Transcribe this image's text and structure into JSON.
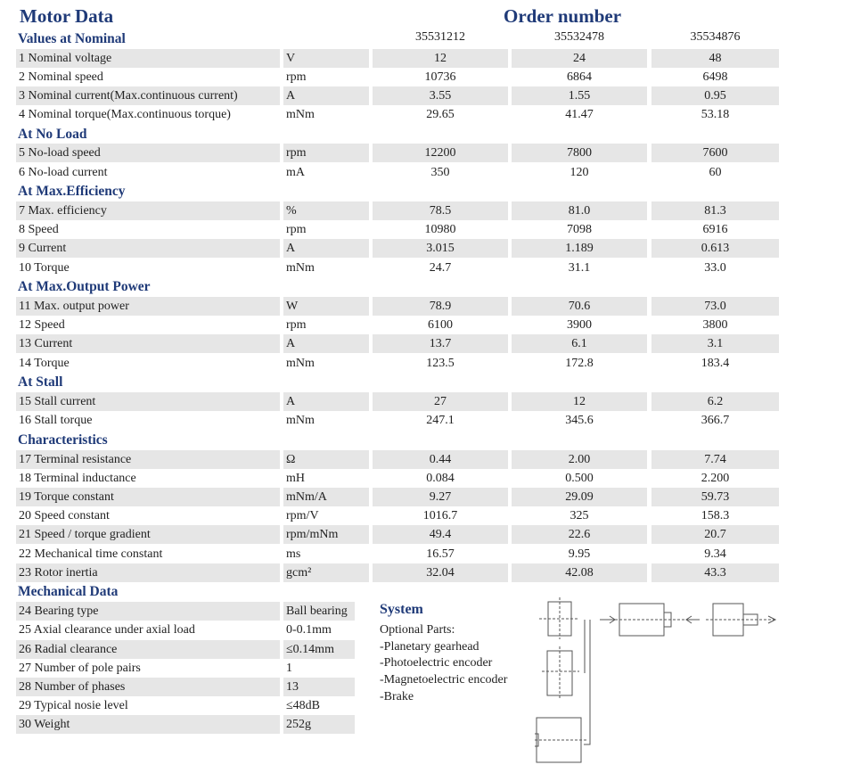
{
  "title": "Motor Data",
  "order_title": "Order number",
  "section_nominal": "Values at Nominal",
  "order_numbers": [
    "35531212",
    "35532478",
    "35534876"
  ],
  "sections": {
    "no_load": "At No Load",
    "max_eff": "At Max.Efficiency",
    "max_power": "At Max.Output Power",
    "stall": "At Stall",
    "characteristics": "Characteristics",
    "mechanical": "Mechanical Data"
  },
  "rows": [
    {
      "label": "1 Nominal voltage",
      "unit": "V",
      "v": [
        "12",
        "24",
        "48"
      ]
    },
    {
      "label": "2 Nominal speed",
      "unit": "rpm",
      "v": [
        "10736",
        "6864",
        "6498"
      ]
    },
    {
      "label": "3 Nominal current(Max.continuous current)",
      "unit": "A",
      "v": [
        "3.55",
        "1.55",
        "0.95"
      ]
    },
    {
      "label": "4 Nominal torque(Max.continuous torque)",
      "unit": "mNm",
      "v": [
        "29.65",
        "41.47",
        "53.18"
      ]
    },
    {
      "label": "5 No-load speed",
      "unit": "rpm",
      "v": [
        "12200",
        "7800",
        "7600"
      ]
    },
    {
      "label": "6 No-load current",
      "unit": "mA",
      "v": [
        "350",
        "120",
        "60"
      ]
    },
    {
      "label": "7 Max. efficiency",
      "unit": "%",
      "v": [
        "78.5",
        "81.0",
        "81.3"
      ]
    },
    {
      "label": "8 Speed",
      "unit": "rpm",
      "v": [
        "10980",
        "7098",
        "6916"
      ]
    },
    {
      "label": "9 Current",
      "unit": "A",
      "v": [
        "3.015",
        "1.189",
        "0.613"
      ]
    },
    {
      "label": "10 Torque",
      "unit": "mNm",
      "v": [
        "24.7",
        "31.1",
        "33.0"
      ]
    },
    {
      "label": "11 Max. output power",
      "unit": "W",
      "v": [
        "78.9",
        "70.6",
        "73.0"
      ]
    },
    {
      "label": "12 Speed",
      "unit": "rpm",
      "v": [
        "6100",
        "3900",
        "3800"
      ]
    },
    {
      "label": "13  Current",
      "unit": "A",
      "v": [
        "13.7",
        "6.1",
        "3.1"
      ]
    },
    {
      "label": "14 Torque",
      "unit": "mNm",
      "v": [
        "123.5",
        "172.8",
        "183.4"
      ]
    },
    {
      "label": "15 Stall current",
      "unit": "A",
      "v": [
        "27",
        "12",
        "6.2"
      ]
    },
    {
      "label": "16 Stall torque",
      "unit": "mNm",
      "v": [
        "247.1",
        "345.6",
        "366.7"
      ]
    },
    {
      "label": "17 Terminal resistance",
      "unit": "Ω",
      "v": [
        "0.44",
        "2.00",
        "7.74"
      ]
    },
    {
      "label": "18 Terminal inductance",
      "unit": "mH",
      "v": [
        "0.084",
        "0.500",
        "2.200"
      ]
    },
    {
      "label": "19 Torque constant",
      "unit": "mNm/A",
      "v": [
        "9.27",
        "29.09",
        "59.73"
      ]
    },
    {
      "label": "20 Speed constant",
      "unit": "rpm/V",
      "v": [
        "1016.7",
        "325",
        "158.3"
      ]
    },
    {
      "label": "21 Speed / torque gradient",
      "unit": "rpm/mNm",
      "v": [
        "49.4",
        "22.6",
        "20.7"
      ]
    },
    {
      "label": "22 Mechanical time constant",
      "unit": "ms",
      "v": [
        "16.57",
        "9.95",
        "9.34"
      ]
    },
    {
      "label": "23 Rotor inertia",
      "unit": "gcm²",
      "v": [
        "32.04",
        "42.08",
        "43.3"
      ]
    }
  ],
  "mechanical": [
    {
      "label": "24 Bearing type",
      "value": "Ball bearing"
    },
    {
      "label": "25 Axial clearance under axial  load",
      "value": "0-0.1mm"
    },
    {
      "label": "26 Radial clearance",
      "value": "≤0.14mm"
    },
    {
      "label": "27 Number of pole pairs",
      "value": "1"
    },
    {
      "label": "28 Number of  phases",
      "value": "13"
    },
    {
      "label": "29 Typical nosie level",
      "value": "≤48dB"
    },
    {
      "label": "30 Weight",
      "value": "252g"
    }
  ],
  "system": {
    "title": "System",
    "lines": [
      "Optional Parts:",
      "-Planetary gearhead",
      "-Photoelectric encoder",
      "-Magnetoelectric encoder",
      "-Brake"
    ]
  }
}
